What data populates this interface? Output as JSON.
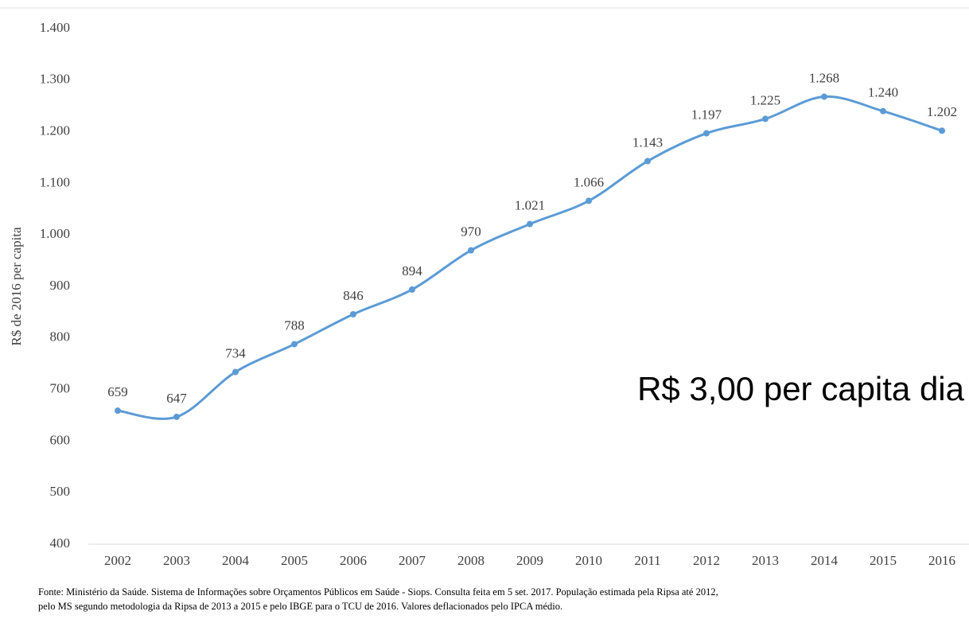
{
  "chart_data": {
    "type": "line",
    "y_label": "R$ de 2016 per capita",
    "annotation": "R$ 3,00 per capita dia",
    "categories": [
      "2002",
      "2003",
      "2004",
      "2005",
      "2006",
      "2007",
      "2008",
      "2009",
      "2010",
      "2011",
      "2012",
      "2013",
      "2014",
      "2015",
      "2016"
    ],
    "series": [
      {
        "name": "R$ de 2016 per capita",
        "color": "#5b9bd5",
        "values": [
          659,
          647,
          734,
          788,
          846,
          894,
          970,
          1021,
          1066,
          1143,
          1197,
          1225,
          1268,
          1240,
          1202
        ],
        "value_labels": [
          "659",
          "647",
          "734",
          "788",
          "846",
          "894",
          "970",
          "1.021",
          "1.066",
          "1.143",
          "1.197",
          "1.225",
          "1.268",
          "1.240",
          "1.202"
        ]
      }
    ],
    "ylim": [
      400,
      1400
    ],
    "yticks": [
      400,
      500,
      600,
      700,
      800,
      900,
      {
        "value": 1000,
        "label": "1.000"
      },
      {
        "value": 1100,
        "label": "1.100"
      },
      {
        "value": 1200,
        "label": "1.200"
      },
      {
        "value": 1300,
        "label": "1.300"
      },
      {
        "value": 1400,
        "label": "1.400"
      }
    ],
    "grid": false,
    "notes": [
      "Fonte: Ministério da Saúde. Sistema de Informações sobre Orçamentos Públicos em Saúde - Siops. Consulta feita em 5 set. 2017.  População estimada pela Ripsa até 2012,",
      "pelo MS segundo metodologia da Ripsa de 2013  a 2015  e pelo IBGE  para o TCU de 2016.  Valores deflacionados pelo IPCA médio."
    ]
  }
}
